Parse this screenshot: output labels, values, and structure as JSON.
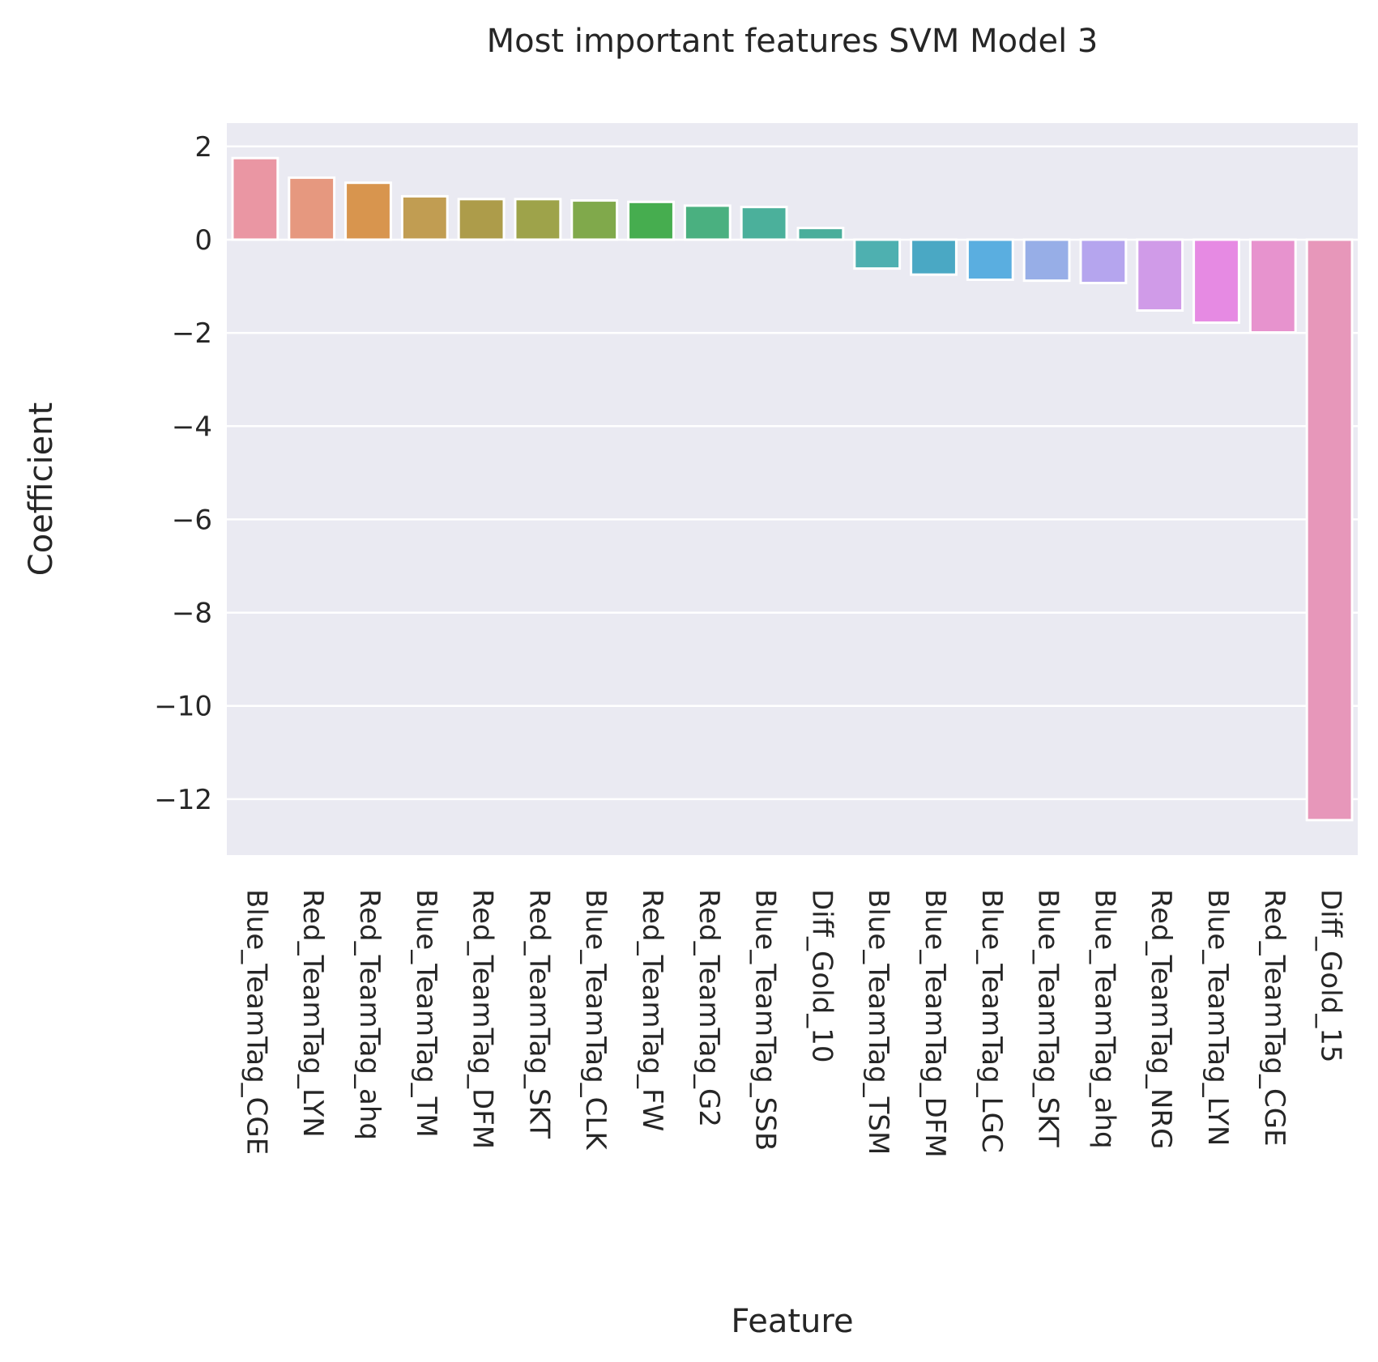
{
  "chart_data": {
    "type": "bar",
    "title": "Most important features SVM Model 3",
    "xlabel": "Feature",
    "ylabel": "Coefficient",
    "ylim": [
      -13.2,
      2.5
    ],
    "yticks": [
      2,
      0,
      -2,
      -4,
      -6,
      -8,
      -10,
      -12
    ],
    "ytick_labels": [
      "2",
      "0",
      "−2",
      "−4",
      "−6",
      "−8",
      "−10",
      "−12"
    ],
    "grid": true,
    "categories": [
      "Blue_TeamTag_CGE",
      "Red_TeamTag_LYN",
      "Red_TeamTag_ahq",
      "Blue_TeamTag_TM",
      "Red_TeamTag_DFM",
      "Red_TeamTag_SKT",
      "Blue_TeamTag_CLK",
      "Red_TeamTag_FW",
      "Red_TeamTag_G2",
      "Blue_TeamTag_SSB",
      "Diff_Gold_10",
      "Blue_TeamTag_TSM",
      "Blue_TeamTag_DFM",
      "Blue_TeamTag_LGC",
      "Blue_TeamTag_SKT",
      "Blue_TeamTag_ahq",
      "Red_TeamTag_NRG",
      "Blue_TeamTag_LYN",
      "Red_TeamTag_CGE",
      "Diff_Gold_15"
    ],
    "values": [
      1.75,
      1.33,
      1.22,
      0.93,
      0.87,
      0.87,
      0.84,
      0.81,
      0.73,
      0.7,
      0.25,
      -0.62,
      -0.75,
      -0.86,
      -0.88,
      -0.93,
      -1.52,
      -1.78,
      -1.99,
      -12.45
    ],
    "colors": [
      "#ea96a3",
      "#e6987f",
      "#d8954e",
      "#c19d52",
      "#ad9c4a",
      "#9ea34a",
      "#80a94b",
      "#46ad4f",
      "#4ab080",
      "#4bb09b",
      "#4aae9b",
      "#4eb0b0",
      "#4aa8c4",
      "#5aaee0",
      "#97aee7",
      "#b5a5ee",
      "#d09be8",
      "#e68ae3",
      "#e793ce",
      "#e797ba"
    ],
    "plot_bg": "#eaeaf2",
    "grid_color": "#ffffff",
    "text_color": "#262626"
  }
}
